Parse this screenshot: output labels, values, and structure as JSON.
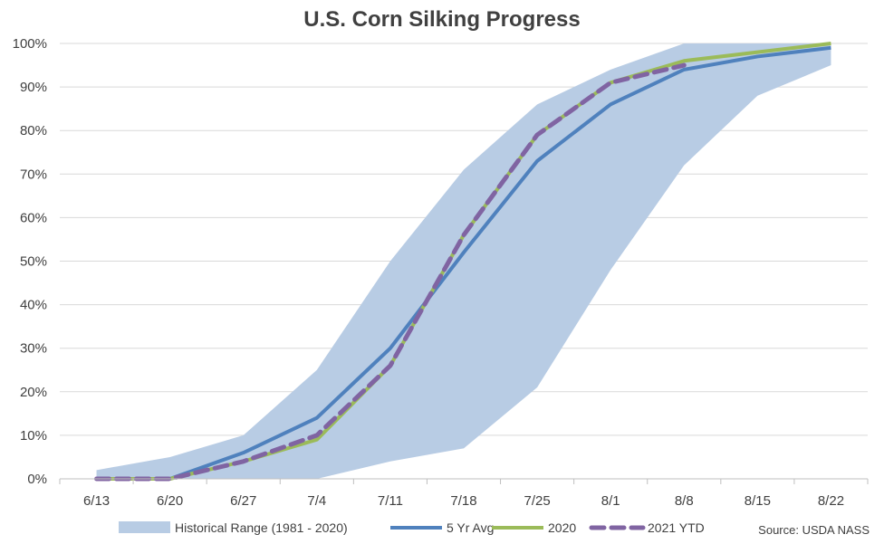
{
  "chart_data": {
    "type": "line",
    "title": "U.S. Corn Silking Progress",
    "categories": [
      "6/13",
      "6/20",
      "6/27",
      "7/4",
      "7/11",
      "7/18",
      "7/25",
      "8/1",
      "8/8",
      "8/15",
      "8/22"
    ],
    "y_ticks": [
      "0%",
      "10%",
      "20%",
      "30%",
      "40%",
      "50%",
      "60%",
      "70%",
      "80%",
      "90%",
      "100%"
    ],
    "ylim": [
      0,
      100
    ],
    "grid": true,
    "legend_position": "bottom",
    "range_band": {
      "name": "Historical Range (1981 - 2020)",
      "color": "#b8cce4",
      "max": [
        2,
        5,
        10,
        25,
        50,
        71,
        86,
        94,
        100,
        100,
        100
      ],
      "min": [
        0,
        0,
        0,
        0,
        4,
        7,
        21,
        48,
        72,
        88,
        95
      ]
    },
    "series": [
      {
        "name": "5 Yr Avg",
        "color": "#4f81bd",
        "dashed": false,
        "values": [
          0,
          0,
          6,
          14,
          30,
          52,
          73,
          86,
          94,
          97,
          99
        ]
      },
      {
        "name": "2020",
        "color": "#9bbb59",
        "dashed": false,
        "values": [
          0,
          0,
          4,
          9,
          26,
          56,
          79,
          91,
          96,
          98,
          100
        ]
      },
      {
        "name": "2021 YTD",
        "color": "#8064a2",
        "dashed": true,
        "values": [
          0,
          0,
          4,
          10,
          26,
          56,
          79,
          91,
          95,
          null,
          null
        ]
      }
    ],
    "source": "Source: USDA NASS"
  }
}
